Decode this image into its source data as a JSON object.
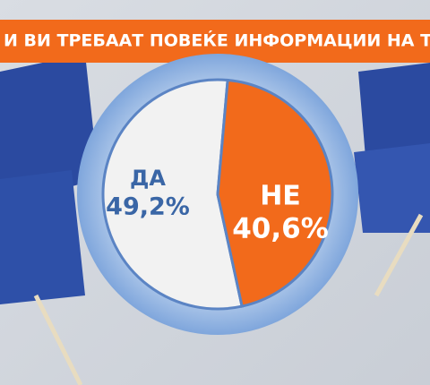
{
  "chart_data": {
    "type": "pie",
    "title": "И ВИ ТРЕБААТ ПОВЕЌЕ ИНФОРМАЦИИ НА ТЕМА",
    "categories": [
      "ДА",
      "НЕ"
    ],
    "values": [
      49.2,
      40.6
    ],
    "value_labels": [
      "49,2%",
      "40,6%"
    ],
    "colors": [
      "#f2f2f2",
      "#f26a1b"
    ]
  }
}
